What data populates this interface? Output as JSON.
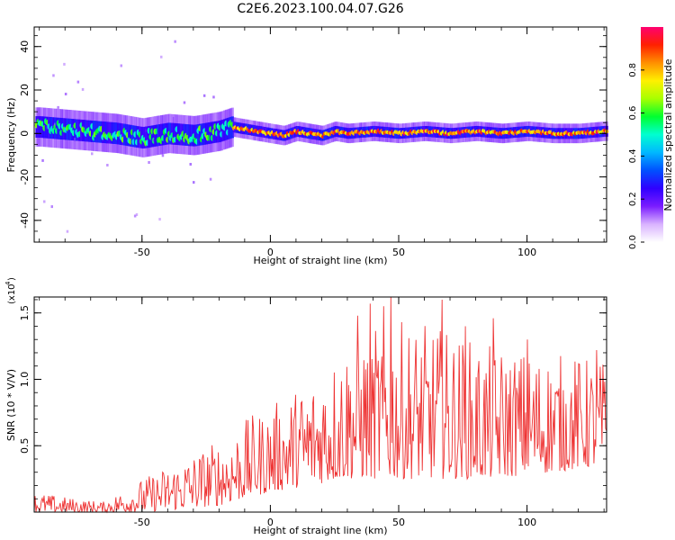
{
  "title": "C2E6.2023.100.04.07.G26",
  "chart_data": [
    {
      "type": "heatmap",
      "xlabel": "Height of straight line (km)",
      "ylabel": "Frequency (Hz)",
      "xlim": [
        -92,
        131
      ],
      "ylim": [
        -50,
        49
      ],
      "xticks": [
        -50,
        0,
        50,
        100
      ],
      "yticks": [
        -40,
        -20,
        0,
        20,
        40
      ],
      "colorbar": {
        "label": "Normalized spectral amplitude",
        "range": [
          0,
          1
        ],
        "ticks": [
          0.0,
          0.2,
          0.4,
          0.6,
          0.8
        ],
        "colors": [
          "#ffffff",
          "#d9b3ff",
          "#7a1cff",
          "#2f00ff",
          "#0050ff",
          "#00b8ff",
          "#00ffd0",
          "#00ff30",
          "#a8ff00",
          "#fff000",
          "#ff9000",
          "#ff2000",
          "#ff0070"
        ]
      },
      "ridge": [
        {
          "x": -90,
          "f": 3
        },
        {
          "x": -80,
          "f": 2
        },
        {
          "x": -70,
          "f": 1
        },
        {
          "x": -60,
          "f": 0
        },
        {
          "x": -50,
          "f": -2
        },
        {
          "x": -40,
          "f": 0
        },
        {
          "x": -30,
          "f": -1
        },
        {
          "x": -20,
          "f": 1
        },
        {
          "x": -15,
          "f": 3
        },
        {
          "x": -10,
          "f": 2
        },
        {
          "x": -5,
          "f": 1
        },
        {
          "x": 0,
          "f": 0
        },
        {
          "x": 5,
          "f": -1
        },
        {
          "x": 10,
          "f": 1
        },
        {
          "x": 15,
          "f": 0
        },
        {
          "x": 20,
          "f": -1
        },
        {
          "x": 25,
          "f": 1
        },
        {
          "x": 30,
          "f": 0
        },
        {
          "x": 40,
          "f": 1
        },
        {
          "x": 50,
          "f": 0
        },
        {
          "x": 60,
          "f": 1
        },
        {
          "x": 70,
          "f": 0
        },
        {
          "x": 80,
          "f": 1
        },
        {
          "x": 90,
          "f": 0
        },
        {
          "x": 100,
          "f": 1
        },
        {
          "x": 110,
          "f": 0
        },
        {
          "x": 120,
          "f": 0
        },
        {
          "x": 130,
          "f": 1
        }
      ]
    },
    {
      "type": "line",
      "xlabel": "Height of straight line (km)",
      "ylabel": "SNR (10 * V/V)",
      "ymultiplier": "(x10",
      "ymultiplier_exp": "4",
      "xlim": [
        -92,
        131
      ],
      "ylim": [
        0,
        1.62
      ],
      "xticks": [
        -50,
        0,
        50,
        100
      ],
      "yticks": [
        0.5,
        1.0,
        1.5
      ],
      "ytick_labels": [
        "0.5",
        "1.0",
        "1.5"
      ],
      "color": "#ee3333",
      "envelope": [
        {
          "x": -92,
          "lo": 0.0,
          "hi": 0.15
        },
        {
          "x": -75,
          "lo": 0.0,
          "hi": 0.1
        },
        {
          "x": -65,
          "lo": 0.0,
          "hi": 0.08
        },
        {
          "x": -50,
          "lo": 0.0,
          "hi": 0.25
        },
        {
          "x": -35,
          "lo": 0.02,
          "hi": 0.4
        },
        {
          "x": -20,
          "lo": 0.05,
          "hi": 0.55
        },
        {
          "x": -10,
          "lo": 0.1,
          "hi": 0.7
        },
        {
          "x": 0,
          "lo": 0.15,
          "hi": 0.8
        },
        {
          "x": 15,
          "lo": 0.2,
          "hi": 1.0
        },
        {
          "x": 30,
          "lo": 0.25,
          "hi": 1.3
        },
        {
          "x": 45,
          "lo": 0.25,
          "hi": 1.45
        },
        {
          "x": 65,
          "lo": 0.25,
          "hi": 1.4
        },
        {
          "x": 85,
          "lo": 0.25,
          "hi": 1.25
        },
        {
          "x": 110,
          "lo": 0.3,
          "hi": 1.2
        },
        {
          "x": 131,
          "lo": 0.35,
          "hi": 1.15
        }
      ],
      "peaks": [
        {
          "x": 34,
          "y": 1.48
        },
        {
          "x": 39,
          "y": 1.57
        },
        {
          "x": 44,
          "y": 1.55
        },
        {
          "x": 47,
          "y": 1.62
        },
        {
          "x": 67,
          "y": 1.6
        },
        {
          "x": 76,
          "y": 1.4
        },
        {
          "x": 87,
          "y": 1.46
        },
        {
          "x": 100,
          "y": 1.3
        },
        {
          "x": 127,
          "y": 1.22
        }
      ]
    }
  ]
}
